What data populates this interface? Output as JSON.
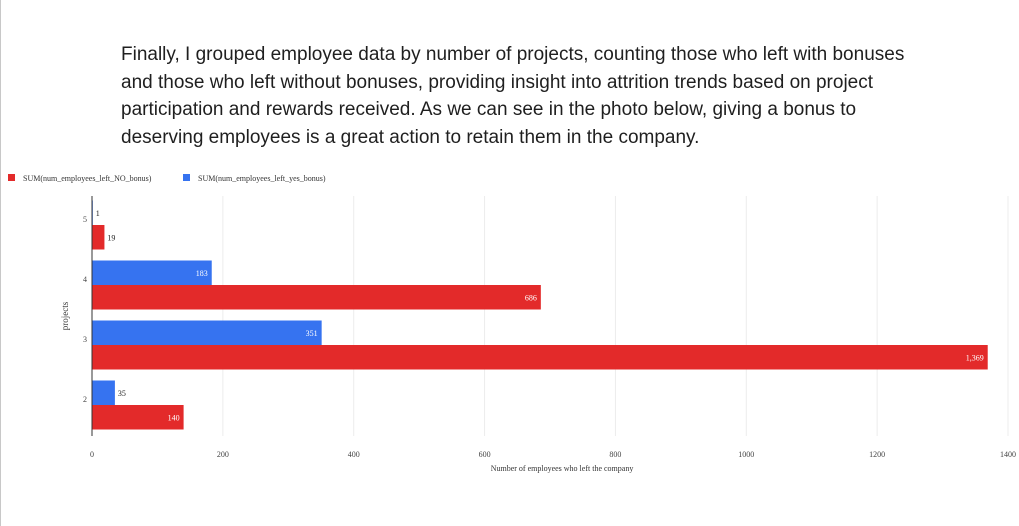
{
  "intro_text": "Finally, I grouped employee data by number of projects, counting those who left with bonuses and those who left without bonuses, providing insight into attrition trends based on project participation and rewards received. As we can see in the photo below, giving a bonus to deserving employees is a great action to retain them in the company.",
  "chart_data": {
    "type": "bar",
    "orientation": "horizontal",
    "categories": [
      "5",
      "4",
      "3",
      "2"
    ],
    "series": [
      {
        "name": "SUM(num_employees_left_NO_bonus)",
        "color": "#e32a2a",
        "values": [
          19,
          686,
          1369,
          140
        ],
        "labels": [
          "19",
          "686",
          "1,369",
          "140"
        ]
      },
      {
        "name": "SUM(num_employees_left_yes_bonus)",
        "color": "#3673f0",
        "values": [
          1,
          183,
          351,
          35
        ],
        "labels": [
          "1",
          "183",
          "351",
          "35"
        ]
      }
    ],
    "xlabel": "Number of employees who left the company",
    "ylabel": "projects",
    "xlim": [
      0,
      1400
    ],
    "xticks": [
      0,
      200,
      400,
      600,
      800,
      1000,
      1200,
      1400
    ],
    "grid": true,
    "legend_position": "top-left"
  }
}
